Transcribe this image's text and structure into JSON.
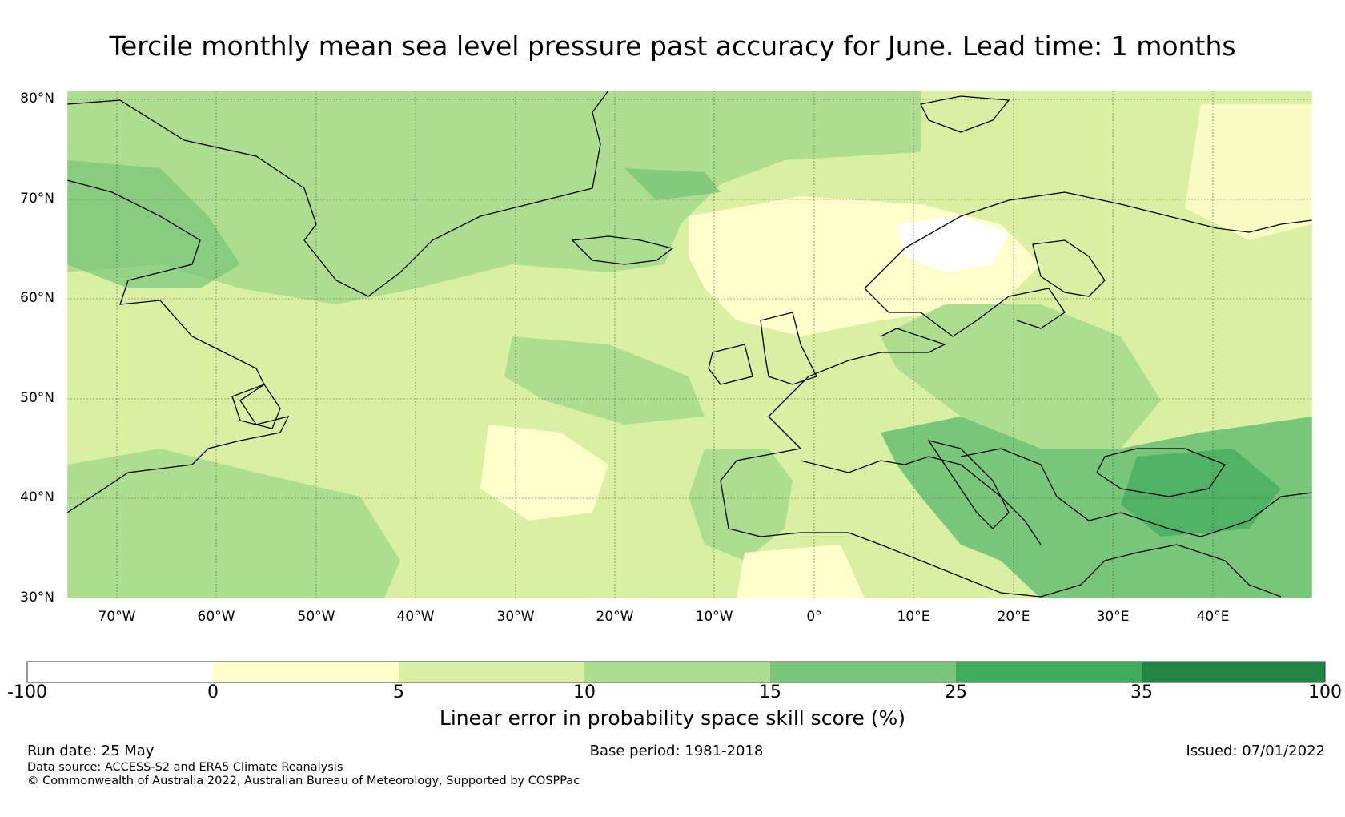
{
  "title": "Tercile monthly mean sea level pressure past accuracy for June. Lead time: 1 months",
  "map": {
    "lat_labels": [
      "80°N",
      "70°N",
      "60°N",
      "50°N",
      "40°N",
      "30°N"
    ],
    "lon_labels": [
      "70°W",
      "60°W",
      "50°W",
      "40°W",
      "30°W",
      "20°W",
      "10°W",
      "0°",
      "10°E",
      "20°E",
      "30°E",
      "40°E"
    ],
    "extent": {
      "lon_min": -75,
      "lon_max": 50,
      "lat_min": 30,
      "lat_max": 81
    }
  },
  "colorbar": {
    "ticks": [
      "-100",
      "0",
      "5",
      "10",
      "15",
      "25",
      "35",
      "100"
    ],
    "colors": [
      "#ffffff",
      "#ffffcc",
      "#d9f0a3",
      "#addd8e",
      "#78c679",
      "#41ab5d",
      "#238443"
    ],
    "label": "Linear error in probability space skill score (%)"
  },
  "footer": {
    "run_date": "Run date: 25 May",
    "base_period": "Base period: 1981-2018",
    "issued": "Issued: 07/01/2022",
    "data_source": "Data source: ACCESS-S2 and ERA5 Climate Reanalysis",
    "copyright": "© Commonwealth of Australia 2022, Australian Bureau of Meteorology, Supported by COSPPac"
  }
}
